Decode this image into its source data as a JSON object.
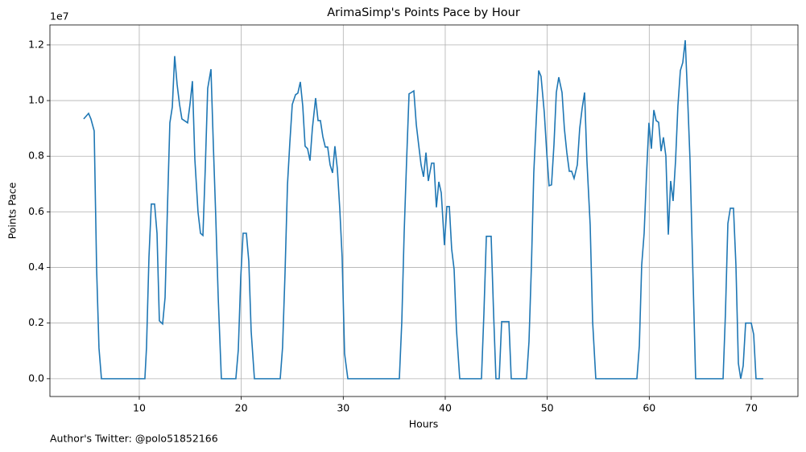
{
  "chart_data": {
    "type": "line",
    "title": "ArimaSimp's Points Pace by Hour",
    "xlabel": "Hours",
    "ylabel": "Points Pace",
    "y_offset_label": "1e7",
    "footnote": "Author's Twitter: @polo51852166",
    "x": [
      4.55,
      5.03,
      5.26,
      5.58,
      5.82,
      6.05,
      6.29,
      10.55,
      10.71,
      10.95,
      11.18,
      11.5,
      11.74,
      11.97,
      12.29,
      12.53,
      12.76,
      13.0,
      13.24,
      13.47,
      13.71,
      13.95,
      14.18,
      14.42,
      14.74,
      14.97,
      15.21,
      15.45,
      15.76,
      16.0,
      16.24,
      16.47,
      16.71,
      17.03,
      17.26,
      17.5,
      17.74,
      18.05,
      19.47,
      19.71,
      19.95,
      20.18,
      20.5,
      20.74,
      20.97,
      21.29,
      23.82,
      24.05,
      24.29,
      24.53,
      24.76,
      25.0,
      25.32,
      25.55,
      25.79,
      26.03,
      26.26,
      26.5,
      26.74,
      26.97,
      27.29,
      27.53,
      27.76,
      28.0,
      28.24,
      28.47,
      28.71,
      28.95,
      29.18,
      29.42,
      29.66,
      29.89,
      30.13,
      30.45,
      35.5,
      35.74,
      35.97,
      36.21,
      36.45,
      36.92,
      37.16,
      37.39,
      37.63,
      37.87,
      38.11,
      38.34,
      38.66,
      38.89,
      39.13,
      39.37,
      39.61,
      39.92,
      40.16,
      40.4,
      40.63,
      40.87,
      41.1,
      41.42,
      43.55,
      43.79,
      44.03,
      44.5,
      44.74,
      44.97,
      45.29,
      45.53,
      46.24,
      46.47,
      47.97,
      48.21,
      48.45,
      48.68,
      48.92,
      49.16,
      49.39,
      49.71,
      49.95,
      50.18,
      50.42,
      50.66,
      50.89,
      51.13,
      51.45,
      51.68,
      51.92,
      52.16,
      52.39,
      52.63,
      52.95,
      53.18,
      53.42,
      53.66,
      53.89,
      54.21,
      54.45,
      54.76,
      58.79,
      59.03,
      59.26,
      59.5,
      59.74,
      59.97,
      60.21,
      60.45,
      60.68,
      60.92,
      61.16,
      61.39,
      61.63,
      61.87,
      62.1,
      62.34,
      62.58,
      62.81,
      63.05,
      63.29,
      63.53,
      63.76,
      64.0,
      64.24,
      64.55,
      67.24,
      67.47,
      67.71,
      67.95,
      68.26,
      68.5,
      68.74,
      68.97,
      69.21,
      69.45,
      70.0,
      70.24,
      70.47,
      71.18
    ],
    "series": [
      {
        "name": "Points Pace",
        "color": "#1f77b4",
        "values": [
          0.934,
          0.954,
          0.934,
          0.891,
          0.393,
          0.11,
          0,
          0,
          0.113,
          0.437,
          0.628,
          0.628,
          0.523,
          0.208,
          0.197,
          0.292,
          0.61,
          0.92,
          0.977,
          1.16,
          1.058,
          0.986,
          0.934,
          0.928,
          0.92,
          0.986,
          1.07,
          0.789,
          0.599,
          0.523,
          0.515,
          0.755,
          1.044,
          1.113,
          0.842,
          0.581,
          0.292,
          0,
          0,
          0.104,
          0.364,
          0.523,
          0.523,
          0.422,
          0.171,
          0,
          0,
          0.113,
          0.379,
          0.697,
          0.847,
          0.986,
          1.021,
          1.027,
          1.067,
          0.98,
          0.836,
          0.827,
          0.784,
          0.899,
          1.009,
          0.928,
          0.928,
          0.87,
          0.833,
          0.833,
          0.769,
          0.74,
          0.836,
          0.755,
          0.61,
          0.437,
          0.09,
          0,
          0,
          0.205,
          0.523,
          0.784,
          1.024,
          1.035,
          0.914,
          0.842,
          0.769,
          0.726,
          0.813,
          0.711,
          0.775,
          0.775,
          0.616,
          0.708,
          0.668,
          0.48,
          0.619,
          0.619,
          0.466,
          0.393,
          0.176,
          0,
          0,
          0.234,
          0.512,
          0.512,
          0.234,
          0,
          0,
          0.205,
          0.205,
          0,
          0,
          0.133,
          0.408,
          0.74,
          0.928,
          1.108,
          1.087,
          0.957,
          0.813,
          0.694,
          0.697,
          0.842,
          1.029,
          1.084,
          1.029,
          0.899,
          0.813,
          0.746,
          0.746,
          0.72,
          0.769,
          0.899,
          0.972,
          1.029,
          0.784,
          0.552,
          0.205,
          0,
          0,
          0.119,
          0.408,
          0.523,
          0.74,
          0.92,
          0.827,
          0.966,
          0.928,
          0.922,
          0.818,
          0.868,
          0.801,
          0.518,
          0.711,
          0.639,
          0.784,
          0.98,
          1.108,
          1.137,
          1.217,
          1.015,
          0.784,
          0.437,
          0,
          0,
          0.234,
          0.558,
          0.613,
          0.613,
          0.408,
          0.055,
          0,
          0.046,
          0.2,
          0.2,
          0.159,
          0,
          0
        ]
      }
    ],
    "xlim": [
      1.24,
      74.58
    ],
    "ylim": [
      -0.064,
      1.272
    ],
    "xticks": [
      10,
      20,
      30,
      40,
      50,
      60,
      70
    ],
    "yticks": [
      {
        "value": 0,
        "label": "0.0"
      },
      0.2,
      0.4,
      0.6,
      0.8,
      {
        "value": 1,
        "label": "1.0"
      },
      1.2
    ],
    "grid": true
  }
}
